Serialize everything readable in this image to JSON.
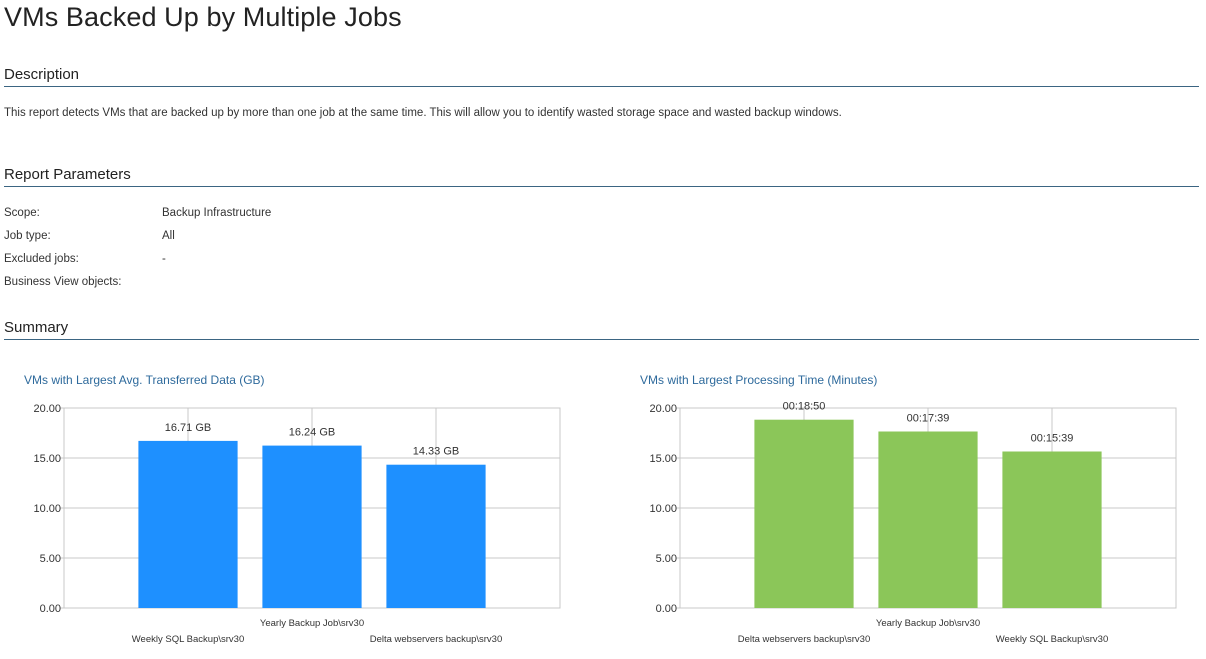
{
  "page": {
    "title": "VMs Backed Up by Multiple Jobs"
  },
  "description": {
    "heading": "Description",
    "text": "This report detects VMs that are backed up by more than one job at the same time. This will allow you to identify wasted storage space and wasted backup windows."
  },
  "parameters": {
    "heading": "Report Parameters",
    "rows": [
      {
        "label": "Scope:",
        "value": "Backup Infrastructure"
      },
      {
        "label": "Job type:",
        "value": "All"
      },
      {
        "label": "Excluded jobs:",
        "value": "-"
      },
      {
        "label": "Business View objects:",
        "value": ""
      }
    ]
  },
  "summary": {
    "heading": "Summary"
  },
  "chart_data": [
    {
      "type": "bar",
      "title": "VMs with Largest Avg. Transferred Data (GB)",
      "categories": [
        "Weekly SQL Backup\\srv30",
        "Yearly Backup Job\\srv30",
        "Delta webservers backup\\srv30"
      ],
      "values": [
        16.71,
        16.24,
        14.33
      ],
      "data_labels": [
        "16.71 GB",
        "16.24 GB",
        "14.33 GB"
      ],
      "yticks": [
        "0.00",
        "5.00",
        "10.00",
        "15.00",
        "20.00"
      ],
      "ylim": [
        0,
        20
      ],
      "grid": true,
      "color": "#1e90ff"
    },
    {
      "type": "bar",
      "title": "VMs with Largest Processing Time (Minutes)",
      "categories": [
        "Delta webservers backup\\srv30",
        "Yearly Backup Job\\srv30",
        "Weekly SQL Backup\\srv30"
      ],
      "values": [
        18.83,
        17.65,
        15.65
      ],
      "data_labels": [
        "00:18:50",
        "00:17:39",
        "00:15:39"
      ],
      "yticks": [
        "0.00",
        "5.00",
        "10.00",
        "15.00",
        "20.00"
      ],
      "ylim": [
        0,
        20
      ],
      "grid": true,
      "color": "#8bc659"
    }
  ]
}
